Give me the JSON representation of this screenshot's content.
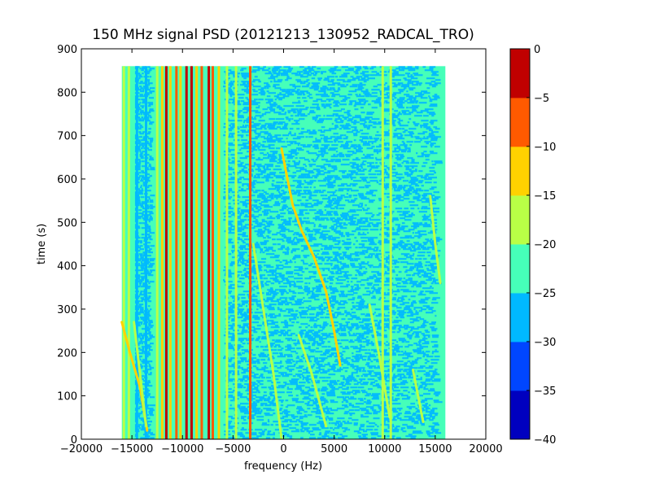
{
  "chart_data": {
    "type": "heatmap",
    "title": "150 MHz signal PSD (20121213_130952_RADCAL_TRO)",
    "xlabel": "frequency (Hz)",
    "ylabel": "time (s)",
    "xlim": [
      -20000,
      20000
    ],
    "ylim": [
      0,
      900
    ],
    "x_ticks": [
      -20000,
      -15000,
      -10000,
      -5000,
      0,
      5000,
      10000,
      15000,
      20000
    ],
    "x_tick_labels": [
      "−20000",
      "−15000",
      "−10000",
      "−5000",
      "0",
      "5000",
      "10000",
      "15000",
      "20000"
    ],
    "y_ticks": [
      0,
      100,
      200,
      300,
      400,
      500,
      600,
      700,
      800,
      900
    ],
    "y_tick_labels": [
      "0",
      "100",
      "200",
      "300",
      "400",
      "500",
      "600",
      "700",
      "800",
      "900"
    ],
    "data_extent": {
      "x": [
        -16000,
        16000
      ],
      "y": [
        0,
        860
      ]
    },
    "background_level": -25,
    "noisy_region_x": [
      -6000,
      15000
    ],
    "vertical_bands": [
      {
        "x": -15800,
        "level": -20
      },
      {
        "x": -15300,
        "level": -20
      },
      {
        "x": -14500,
        "level": -30
      },
      {
        "x": -13600,
        "level": -30
      },
      {
        "x": -12500,
        "level": -20
      },
      {
        "x": -12000,
        "level": -15
      },
      {
        "x": -11600,
        "level": -5
      },
      {
        "x": -11200,
        "level": -15
      },
      {
        "x": -10600,
        "level": -10
      },
      {
        "x": -10200,
        "level": -15
      },
      {
        "x": -9600,
        "level": -5
      },
      {
        "x": -9100,
        "level": 0
      },
      {
        "x": -8600,
        "level": -15
      },
      {
        "x": -8100,
        "level": -10
      },
      {
        "x": -7400,
        "level": -5
      },
      {
        "x": -7000,
        "level": -10
      },
      {
        "x": -6400,
        "level": -15
      },
      {
        "x": -5600,
        "level": -20
      },
      {
        "x": -4700,
        "level": -20
      },
      {
        "x": -3300,
        "level": -10
      },
      {
        "x": 9800,
        "level": -20
      },
      {
        "x": 10600,
        "level": -20
      }
    ],
    "drifting_tracks": [
      {
        "level": -15,
        "points": [
          [
            -16000,
            270
          ],
          [
            -15200,
            200
          ],
          [
            -14200,
            120
          ],
          [
            -13500,
            20
          ]
        ]
      },
      {
        "level": -20,
        "points": [
          [
            -14800,
            270
          ],
          [
            -14200,
            150
          ],
          [
            -13600,
            30
          ]
        ]
      },
      {
        "level": -15,
        "points": [
          [
            -200,
            670
          ],
          [
            300,
            610
          ],
          [
            900,
            540
          ],
          [
            1800,
            480
          ],
          [
            3000,
            420
          ],
          [
            4200,
            340
          ],
          [
            5000,
            250
          ],
          [
            5600,
            170
          ]
        ]
      },
      {
        "level": -20,
        "points": [
          [
            -3000,
            450
          ],
          [
            -2000,
            300
          ],
          [
            -1000,
            150
          ],
          [
            -200,
            0
          ]
        ]
      },
      {
        "level": -20,
        "points": [
          [
            1500,
            240
          ],
          [
            2800,
            150
          ],
          [
            4200,
            30
          ]
        ]
      },
      {
        "level": -20,
        "points": [
          [
            8500,
            310
          ],
          [
            9400,
            200
          ],
          [
            10500,
            50
          ]
        ]
      },
      {
        "level": -20,
        "points": [
          [
            12800,
            160
          ],
          [
            13800,
            40
          ]
        ]
      },
      {
        "level": -20,
        "points": [
          [
            14500,
            560
          ],
          [
            15000,
            450
          ],
          [
            15500,
            360
          ]
        ]
      }
    ],
    "colorbar": {
      "min": -40,
      "max": 0,
      "step": 5,
      "colors": [
        "#0000bf",
        "#0046ff",
        "#00b9ff",
        "#46ffb9",
        "#b9ff46",
        "#ffd200",
        "#ff5a00",
        "#c00000"
      ],
      "tick_labels": [
        "−40",
        "−35",
        "−30",
        "−25",
        "−20",
        "−15",
        "−10",
        "−5",
        "0"
      ]
    }
  }
}
